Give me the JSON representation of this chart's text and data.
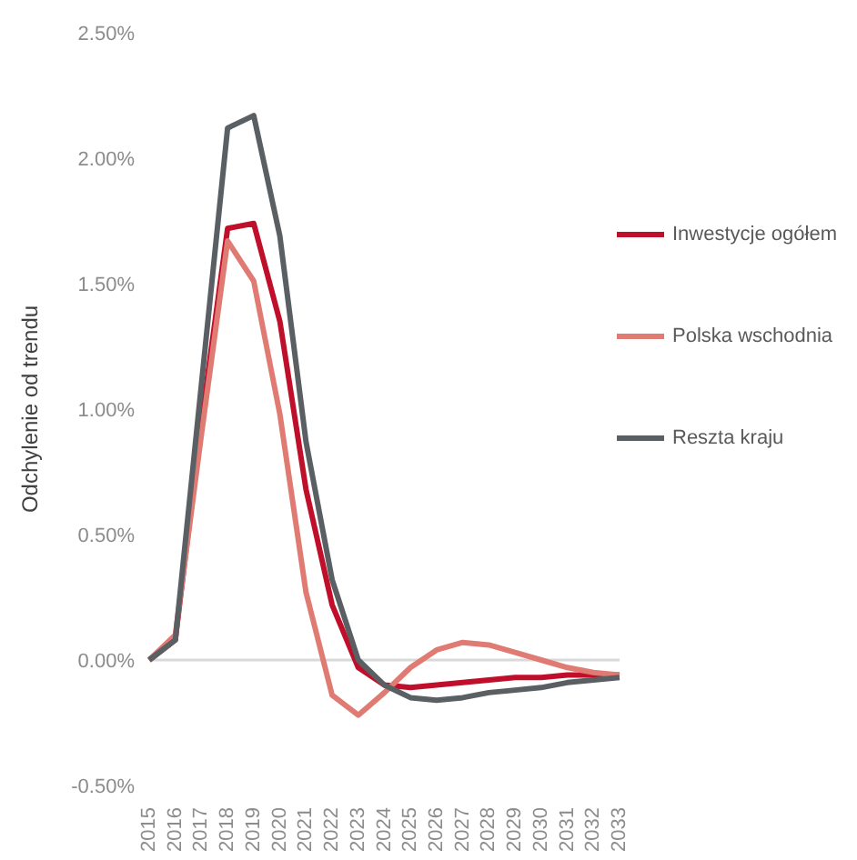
{
  "chart_data": {
    "type": "line",
    "ylabel": "Odchylenie od trendu",
    "categories": [
      "2015",
      "2016",
      "2017",
      "2018",
      "2019",
      "2020",
      "2021",
      "2022",
      "2023",
      "2024",
      "2025",
      "2026",
      "2027",
      "2028",
      "2029",
      "2030",
      "2031",
      "2032",
      "2033"
    ],
    "series": [
      {
        "name": "Inwestycje ogółem",
        "color": "#c00f2a",
        "values": [
          0,
          0.08,
          0.95,
          1.72,
          1.74,
          1.35,
          0.68,
          0.22,
          -0.03,
          -0.1,
          -0.11,
          -0.1,
          -0.09,
          -0.08,
          -0.07,
          -0.07,
          -0.06,
          -0.06,
          -0.06
        ]
      },
      {
        "name": "Polska wschodnia",
        "color": "#e07b73",
        "values": [
          0,
          0.1,
          0.9,
          1.67,
          1.51,
          0.98,
          0.27,
          -0.14,
          -0.22,
          -0.13,
          -0.03,
          0.04,
          0.07,
          0.06,
          0.03,
          0,
          -0.03,
          -0.05,
          -0.06
        ]
      },
      {
        "name": "Reszta kraju",
        "color": "#5a5f63",
        "values": [
          0,
          0.08,
          1.1,
          2.12,
          2.17,
          1.69,
          0.87,
          0.32,
          0,
          -0.1,
          -0.15,
          -0.16,
          -0.15,
          -0.13,
          -0.12,
          -0.11,
          -0.09,
          -0.08,
          -0.07
        ]
      }
    ],
    "ylim": [
      -0.5,
      2.5
    ],
    "yticks": [
      {
        "value": -0.5,
        "label": "-0.50%"
      },
      {
        "value": 0,
        "label": "0.00%"
      },
      {
        "value": 0.5,
        "label": "0.50%"
      },
      {
        "value": 1,
        "label": "1.00%"
      },
      {
        "value": 1.5,
        "label": "1.50%"
      },
      {
        "value": 2,
        "label": "2.00%"
      },
      {
        "value": 2.5,
        "label": "2.50%"
      }
    ],
    "ref_lines": [
      {
        "axis": "y",
        "value": 0,
        "color": "#d9d9d9"
      }
    ],
    "grid": false,
    "legend": "right",
    "marker": "none",
    "line_style": "solid"
  }
}
